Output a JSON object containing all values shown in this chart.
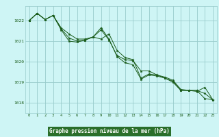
{
  "title": "Graphe pression niveau de la mer (hPa)",
  "background_color": "#cef5f5",
  "plot_bg_color": "#cef5f5",
  "grid_color": "#99cccc",
  "line_color": "#1a5c1a",
  "marker_color": "#1a5c1a",
  "title_bg_color": "#2a6e2a",
  "title_text_color": "#ffffff",
  "xlim": [
    -0.5,
    23.5
  ],
  "ylim": [
    1017.5,
    1022.7
  ],
  "yticks": [
    1018,
    1019,
    1020,
    1021,
    1022
  ],
  "xticks": [
    0,
    1,
    2,
    3,
    4,
    5,
    6,
    7,
    8,
    9,
    10,
    11,
    12,
    13,
    14,
    15,
    16,
    17,
    18,
    19,
    20,
    21,
    22,
    23
  ],
  "series": [
    [
      1022.0,
      1022.35,
      1022.05,
      1022.25,
      1021.65,
      1021.35,
      1021.1,
      1021.1,
      1021.2,
      1021.55,
      1021.05,
      1020.3,
      1020.1,
      1020.05,
      1019.55,
      1019.55,
      1019.35,
      1019.25,
      1019.1,
      1018.65,
      1018.6,
      1018.6,
      1018.2,
      1018.15
    ],
    [
      1022.0,
      1022.35,
      1022.05,
      1022.25,
      1021.55,
      1021.0,
      1020.95,
      1021.05,
      1021.2,
      1021.1,
      1021.35,
      1020.55,
      1020.2,
      1020.1,
      1019.2,
      1019.4,
      1019.35,
      1019.2,
      1019.05,
      1018.6,
      1018.6,
      1018.55,
      1018.75,
      1018.15
    ],
    [
      1022.0,
      1022.35,
      1022.05,
      1022.25,
      1021.6,
      1021.15,
      1021.0,
      1021.05,
      1021.2,
      1021.65,
      1021.1,
      1020.25,
      1019.95,
      1019.85,
      1019.15,
      1019.35,
      1019.3,
      1019.2,
      1019.0,
      1018.6,
      1018.6,
      1018.6,
      1018.45,
      1018.15
    ]
  ]
}
